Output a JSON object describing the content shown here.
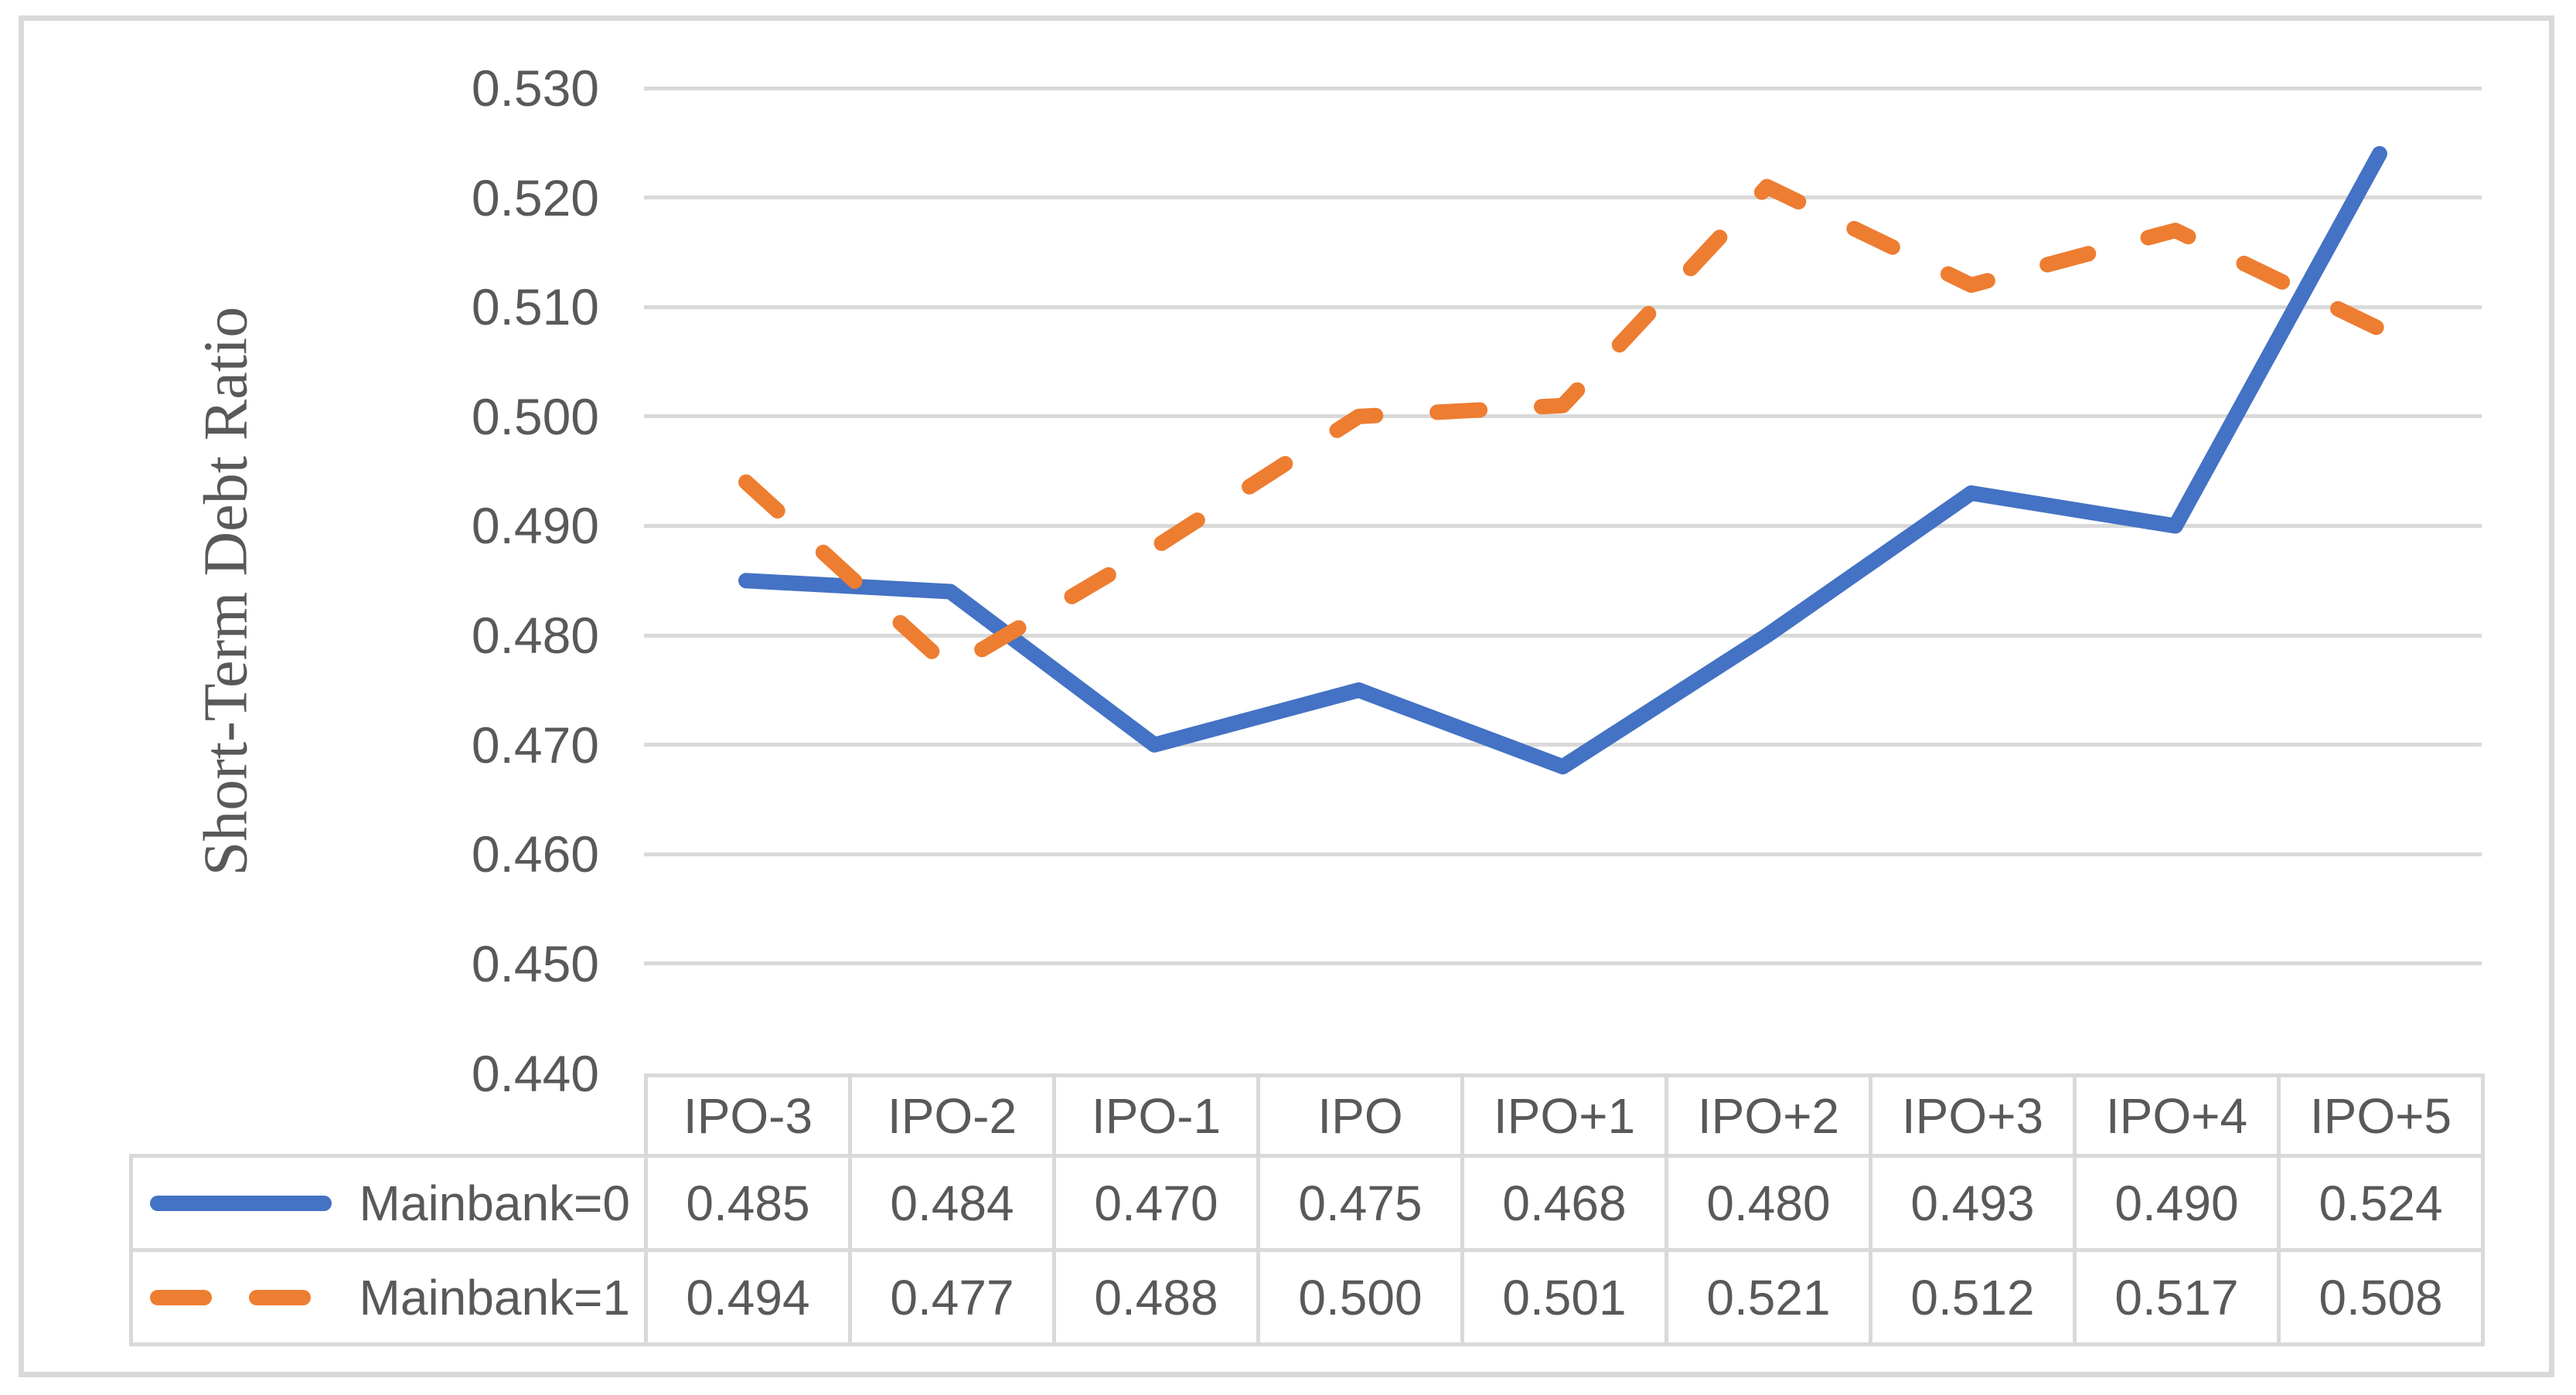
{
  "chart_data": {
    "type": "line",
    "title": "",
    "ylabel": "Short-Term Debt Ratio",
    "categories": [
      "IPO-3",
      "IPO-2",
      "IPO-1",
      "IPO",
      "IPO+1",
      "IPO+2",
      "IPO+3",
      "IPO+4",
      "IPO+5"
    ],
    "series": [
      {
        "name": "Mainbank=0",
        "line_style": "solid",
        "color": "#4472C4",
        "values": [
          0.485,
          0.484,
          0.47,
          0.475,
          0.468,
          0.48,
          0.493,
          0.49,
          0.524
        ]
      },
      {
        "name": "Mainbank=1",
        "line_style": "dashed",
        "color": "#ED7D31",
        "values": [
          0.494,
          0.477,
          0.488,
          0.5,
          0.501,
          0.521,
          0.512,
          0.517,
          0.508
        ]
      }
    ],
    "ylim": [
      0.44,
      0.53
    ],
    "ytick_step": 0.01,
    "ytick_labels": [
      "0.530",
      "0.520",
      "0.510",
      "0.500",
      "0.490",
      "0.480",
      "0.470",
      "0.460",
      "0.450",
      "0.440"
    ],
    "value_decimals": 3,
    "grid": "horizontal",
    "gridline_color": "#D9D9D9",
    "text_color": "#595959",
    "border_color": "#D9D9D9",
    "legend_position": "table-left"
  }
}
